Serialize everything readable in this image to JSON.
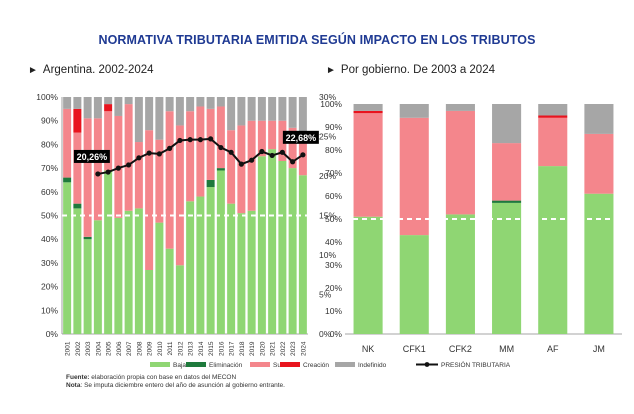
{
  "title": "NORMATIVA TRIBUTARIA EMITIDA SEGÚN IMPACTO EN LOS TRIBUTOS",
  "left_subtitle": "Argentina. 2002-2024",
  "right_subtitle": "Por gobierno. De 2003 a 2024",
  "subtitle_marker": "►",
  "legend": {
    "baja": "Baja",
    "eliminacion": "Eliminación",
    "suba": "Suba",
    "creacion": "Creación",
    "indefinido": "Indefinido",
    "presion": "PRESIÓN TRIBUTARIA"
  },
  "notes": {
    "fuente_label": "Fuente:",
    "fuente_text": " elaboración propia con base en datos del MECON",
    "nota_label": "Nota",
    "nota_text": ": Se imputa diciembre entero del año de asunción al gobierno entrante."
  },
  "colors": {
    "baja": "#8fd673",
    "eliminacion": "#1e7a3c",
    "suba": "#f4868c",
    "creacion": "#e8141e",
    "indefinido": "#a6a6a6",
    "line": "#111111",
    "refline": "#ffffff"
  },
  "chart_data": [
    {
      "type": "bar",
      "stacked": true,
      "title": "Argentina. 2002-2024",
      "categories": [
        "2001",
        "2002",
        "2003",
        "2004",
        "2005",
        "2006",
        "2007",
        "2008",
        "2009",
        "2010",
        "2011",
        "2012",
        "2013",
        "2014",
        "2015",
        "2016",
        "2017",
        "2018",
        "2019",
        "2020",
        "2021",
        "2022",
        "2023",
        "2024"
      ],
      "series": [
        {
          "name": "Baja",
          "values": [
            64,
            53,
            40,
            48,
            69,
            49,
            52,
            53,
            27,
            47,
            36,
            29,
            56,
            58,
            62,
            69,
            55,
            51,
            52,
            75,
            78,
            73,
            70,
            67
          ]
        },
        {
          "name": "Eliminación",
          "values": [
            2,
            2,
            1,
            0,
            0,
            0,
            0,
            0,
            0,
            0,
            0,
            0,
            0,
            0,
            3,
            1,
            0,
            0,
            0,
            0,
            0,
            0,
            0,
            0
          ]
        },
        {
          "name": "Suba",
          "values": [
            29,
            30,
            50,
            43,
            25,
            43,
            45,
            28,
            59,
            35,
            58,
            59,
            38,
            38,
            30,
            26,
            31,
            37,
            38,
            15,
            12,
            17,
            17,
            15
          ]
        },
        {
          "name": "Creación",
          "values": [
            0,
            10,
            0,
            0,
            3,
            0,
            0,
            0,
            0,
            0,
            0,
            0,
            0,
            0,
            0,
            0,
            0,
            0,
            0,
            0,
            0,
            0,
            0,
            0
          ]
        },
        {
          "name": "Indefinido",
          "values": [
            5,
            5,
            9,
            9,
            3,
            8,
            3,
            19,
            14,
            18,
            6,
            12,
            6,
            4,
            5,
            4,
            14,
            12,
            10,
            10,
            10,
            10,
            13,
            18
          ]
        }
      ],
      "ylim": [
        0,
        100
      ],
      "yticks": [
        "0%",
        "10%",
        "20%",
        "30%",
        "40%",
        "50%",
        "60%",
        "70%",
        "80%",
        "90%",
        "100%"
      ],
      "reference_line": 50,
      "line_series": {
        "name": "PRESIÓN TRIBUTARIA",
        "x": [
          "2004",
          "2005",
          "2006",
          "2007",
          "2008",
          "2009",
          "2010",
          "2011",
          "2012",
          "2013",
          "2014",
          "2015",
          "2016",
          "2017",
          "2018",
          "2019",
          "2020",
          "2021",
          "2022",
          "2023",
          "2024"
        ],
        "values": [
          20.26,
          20.5,
          21.0,
          21.4,
          22.3,
          22.9,
          22.8,
          23.5,
          24.5,
          24.6,
          24.6,
          24.7,
          23.6,
          23.0,
          21.5,
          22.0,
          23.1,
          22.6,
          23.0,
          21.8,
          22.68
        ],
        "labels": [
          {
            "x": "2004",
            "text": "20,26%"
          },
          {
            "x": "2024",
            "text": "22,68%"
          }
        ]
      }
    },
    {
      "type": "bar",
      "stacked": true,
      "title": "Por gobierno. De 2003 a 2024",
      "categories": [
        "NK",
        "CFK1",
        "CFK2",
        "MM",
        "AF",
        "JM"
      ],
      "series": [
        {
          "name": "Baja",
          "values": [
            51,
            43,
            52,
            57,
            73,
            61
          ]
        },
        {
          "name": "Eliminación",
          "values": [
            0,
            0,
            0,
            1,
            0,
            0
          ]
        },
        {
          "name": "Suba",
          "values": [
            45,
            51,
            45,
            25,
            21,
            26
          ]
        },
        {
          "name": "Creación",
          "values": [
            1,
            0,
            0,
            0,
            1,
            0
          ]
        },
        {
          "name": "Indefinido",
          "values": [
            3,
            6,
            3,
            17,
            5,
            13
          ]
        }
      ],
      "ylim": [
        0,
        100
      ],
      "yticks": [
        "0%",
        "10%",
        "20%",
        "30%",
        "40%",
        "50%",
        "60%",
        "70%",
        "80%",
        "90%",
        "100%"
      ],
      "secondary_yticks": [
        "0%",
        "5%",
        "10%",
        "15%",
        "20%",
        "25%",
        "30%"
      ],
      "reference_line": 50
    }
  ]
}
